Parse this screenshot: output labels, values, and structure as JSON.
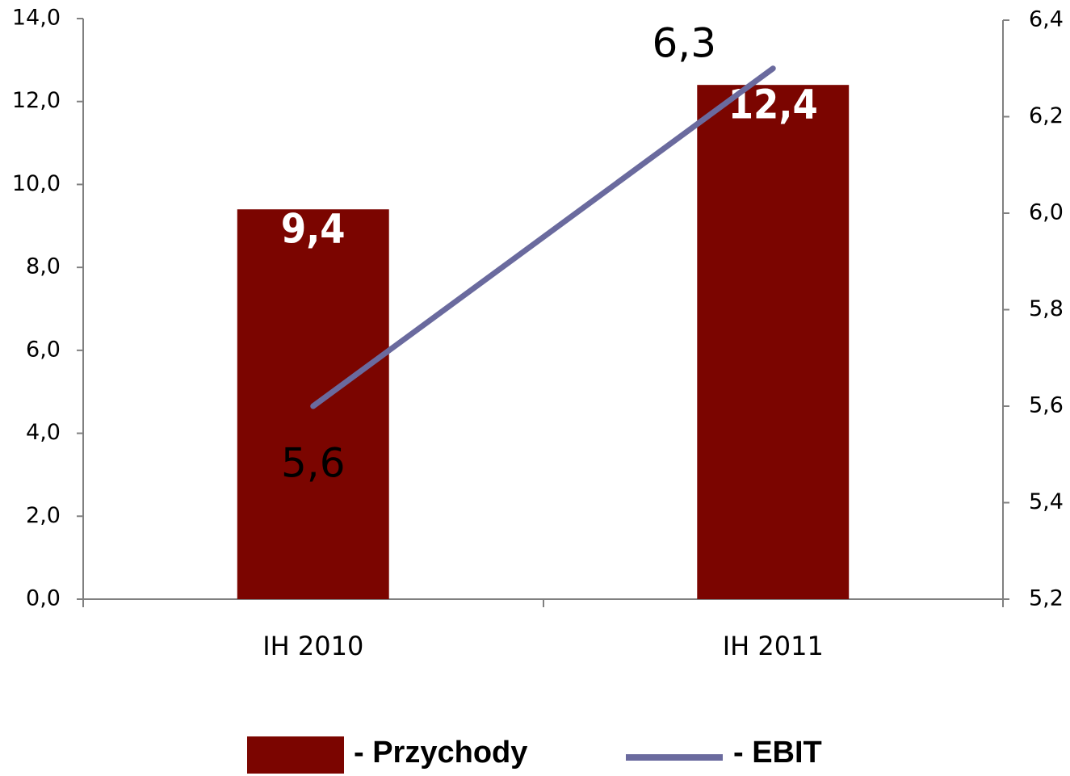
{
  "chart_data": {
    "type": "bar",
    "categories": [
      "IH 2010",
      "IH 2011"
    ],
    "series": [
      {
        "name": "- Przychody",
        "type": "bar",
        "color": "#7b0500",
        "values": [
          9.4,
          12.4
        ],
        "value_labels": [
          "9,4",
          "12,4"
        ]
      },
      {
        "name": "- EBIT",
        "type": "line",
        "axis": "y2",
        "color": "#6a6a9e",
        "values": [
          5.6,
          6.3
        ],
        "value_labels": [
          "5,6",
          "6,3"
        ]
      }
    ],
    "ylim": [
      0,
      14
    ],
    "yticks": [
      {
        "value": 0,
        "label": "0,0"
      },
      {
        "value": 2,
        "label": "2,0"
      },
      {
        "value": 4,
        "label": "4,0"
      },
      {
        "value": 6,
        "label": "6,0"
      },
      {
        "value": 8,
        "label": "8,0"
      },
      {
        "value": 10,
        "label": "10,0"
      },
      {
        "value": 12,
        "label": "12,0"
      },
      {
        "value": 14,
        "label": "14,0"
      }
    ],
    "y2lim": [
      5.2,
      6.4
    ],
    "y2ticks": [
      {
        "value": 5.2,
        "label": "5,2"
      },
      {
        "value": 5.4,
        "label": "5,4"
      },
      {
        "value": 5.6,
        "label": "5,6"
      },
      {
        "value": 5.8,
        "label": "5,8"
      },
      {
        "value": 6.0,
        "label": "6,0"
      },
      {
        "value": 6.2,
        "label": "6,2"
      },
      {
        "value": 6.4,
        "label": "6,4"
      }
    ],
    "grid": false,
    "legend": "bottom"
  }
}
